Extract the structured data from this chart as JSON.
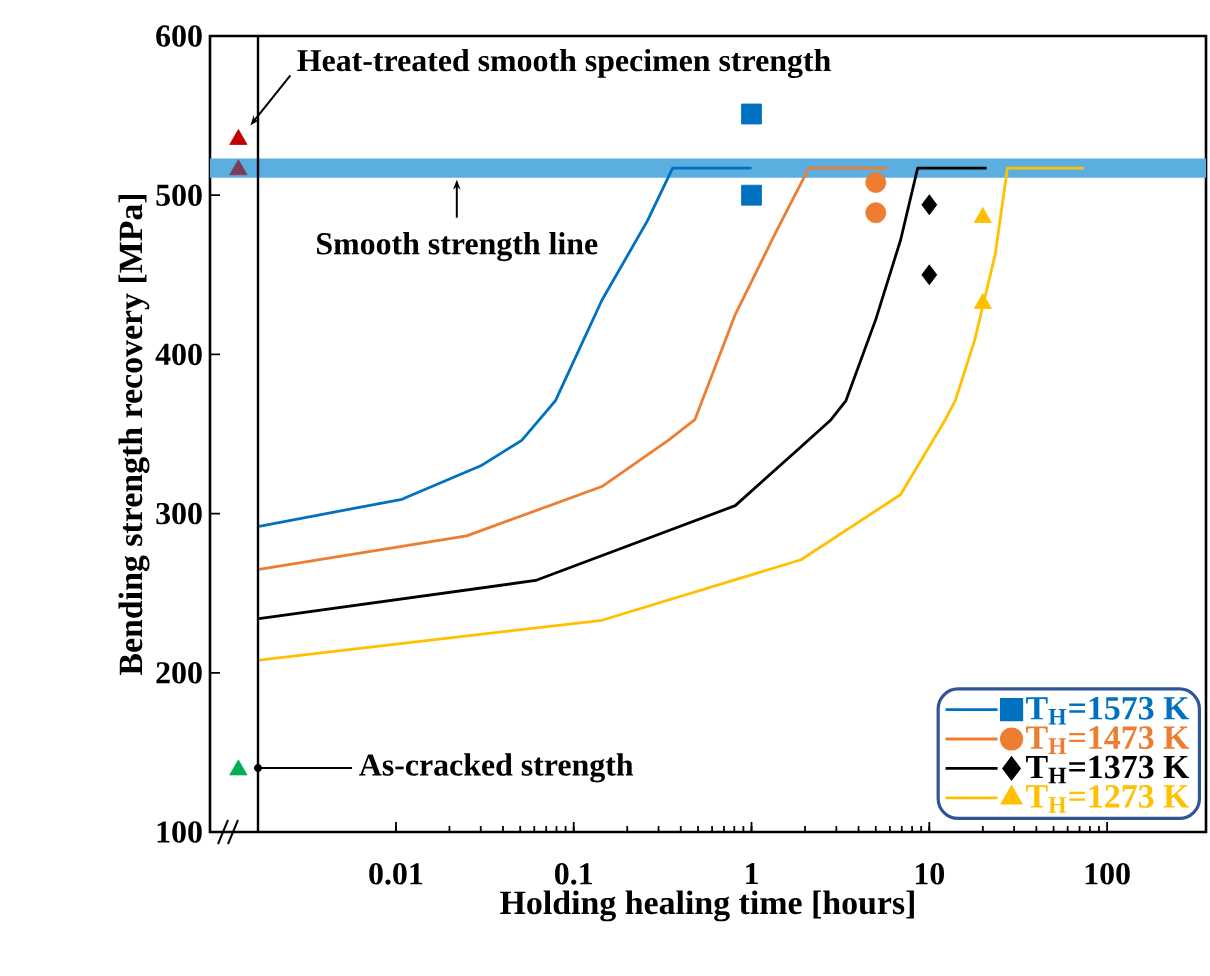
{
  "chart_data": {
    "type": "line",
    "xlabel": "Holding healing time [hours]",
    "ylabel": "Bending strength recovery [MPa]",
    "log": "x",
    "xlim": [
      0.0009,
      360
    ],
    "ylim": [
      100,
      600
    ],
    "xticks": [
      0.01,
      0.1,
      1,
      10,
      100
    ],
    "yticks": [
      100,
      200,
      300,
      400,
      500,
      600
    ],
    "grid": false,
    "legend": "bottom right",
    "bands": [
      {
        "axis": "y",
        "from": 511,
        "to": 523,
        "color": "#5aaee0"
      }
    ],
    "annotations": [
      {
        "text": "Heat-treated smooth specimen strength",
        "x": 0.0013,
        "y": 535
      },
      {
        "text": "Smooth strength line",
        "x": 0.022,
        "y": 511
      },
      "As-cracked strength"
    ],
    "series": [
      {
        "color": "#0070c0",
        "marker": "none",
        "line_style": "solid",
        "x": [
          0.0017,
          0.0108,
          0.03,
          0.051,
          0.079,
          0.144,
          0.26,
          0.36,
          1.0
        ],
        "values": [
          292,
          309,
          330,
          346,
          371,
          434,
          484,
          517,
          517
        ]
      },
      {
        "color": "#ed7d31",
        "marker": "none",
        "line_style": "solid",
        "x": [
          0.0017,
          0.025,
          0.144,
          0.34,
          0.48,
          0.81,
          1.36,
          2.1,
          5.8
        ],
        "values": [
          265,
          286,
          317,
          346,
          359,
          425,
          476,
          517,
          517
        ]
      },
      {
        "color": "#000000",
        "marker": "none",
        "line_style": "solid",
        "x": [
          0.0017,
          0.061,
          0.81,
          1.9,
          2.8,
          3.4,
          5.0,
          6.9,
          8.6,
          21
        ],
        "values": [
          234,
          258,
          305,
          342,
          359,
          371,
          422,
          472,
          517,
          517
        ]
      },
      {
        "color": "#ffc000",
        "marker": "none",
        "line_style": "solid",
        "x": [
          0.0017,
          0.144,
          1.9,
          6.9,
          12.3,
          14,
          18,
          23.5,
          27.5,
          74
        ],
        "values": [
          208,
          233,
          271,
          312,
          359,
          371,
          409,
          463,
          517,
          517
        ]
      },
      {
        "type": "scatter",
        "name": "T$_{H}$=1573 K",
        "color": "#0070c0",
        "marker": "square",
        "x": [
          1
        ],
        "values": [
          500
        ]
      },
      {
        "type": "scatter",
        "name": "T$_{H}$=1473 K",
        "color": "#ed7d31",
        "marker": "circle",
        "x": [
          5,
          5
        ],
        "values": [
          508,
          489
        ]
      },
      {
        "type": "scatter",
        "name": "T$_{H}$=1373 K",
        "color": "#000000",
        "marker": "diamond",
        "x": [
          10,
          10
        ],
        "values": [
          494,
          450
        ]
      },
      {
        "type": "scatter",
        "name": "T$_{H}$=1273 K",
        "color": "#ffc000",
        "marker": "triangle",
        "x": [
          20,
          20
        ],
        "values": [
          486,
          432
        ]
      },
      {
        "type": "scatter",
        "color": "#0070c0",
        "marker": "square",
        "x": [
          1
        ],
        "values": [
          551
        ]
      },
      {
        "type": "scatter",
        "color": "#c00000",
        "marker": "triangle",
        "x": [
          0.0013
        ],
        "values": [
          535
        ]
      },
      {
        "type": "scatter",
        "color": "#7f3c5a",
        "marker": "triangle",
        "x": [
          0.0013
        ],
        "values": [
          516
        ]
      },
      {
        "type": "scatter",
        "color": "#00b050",
        "marker": "triangle",
        "x": [
          0.0013
        ],
        "values": [
          139
        ]
      }
    ]
  }
}
